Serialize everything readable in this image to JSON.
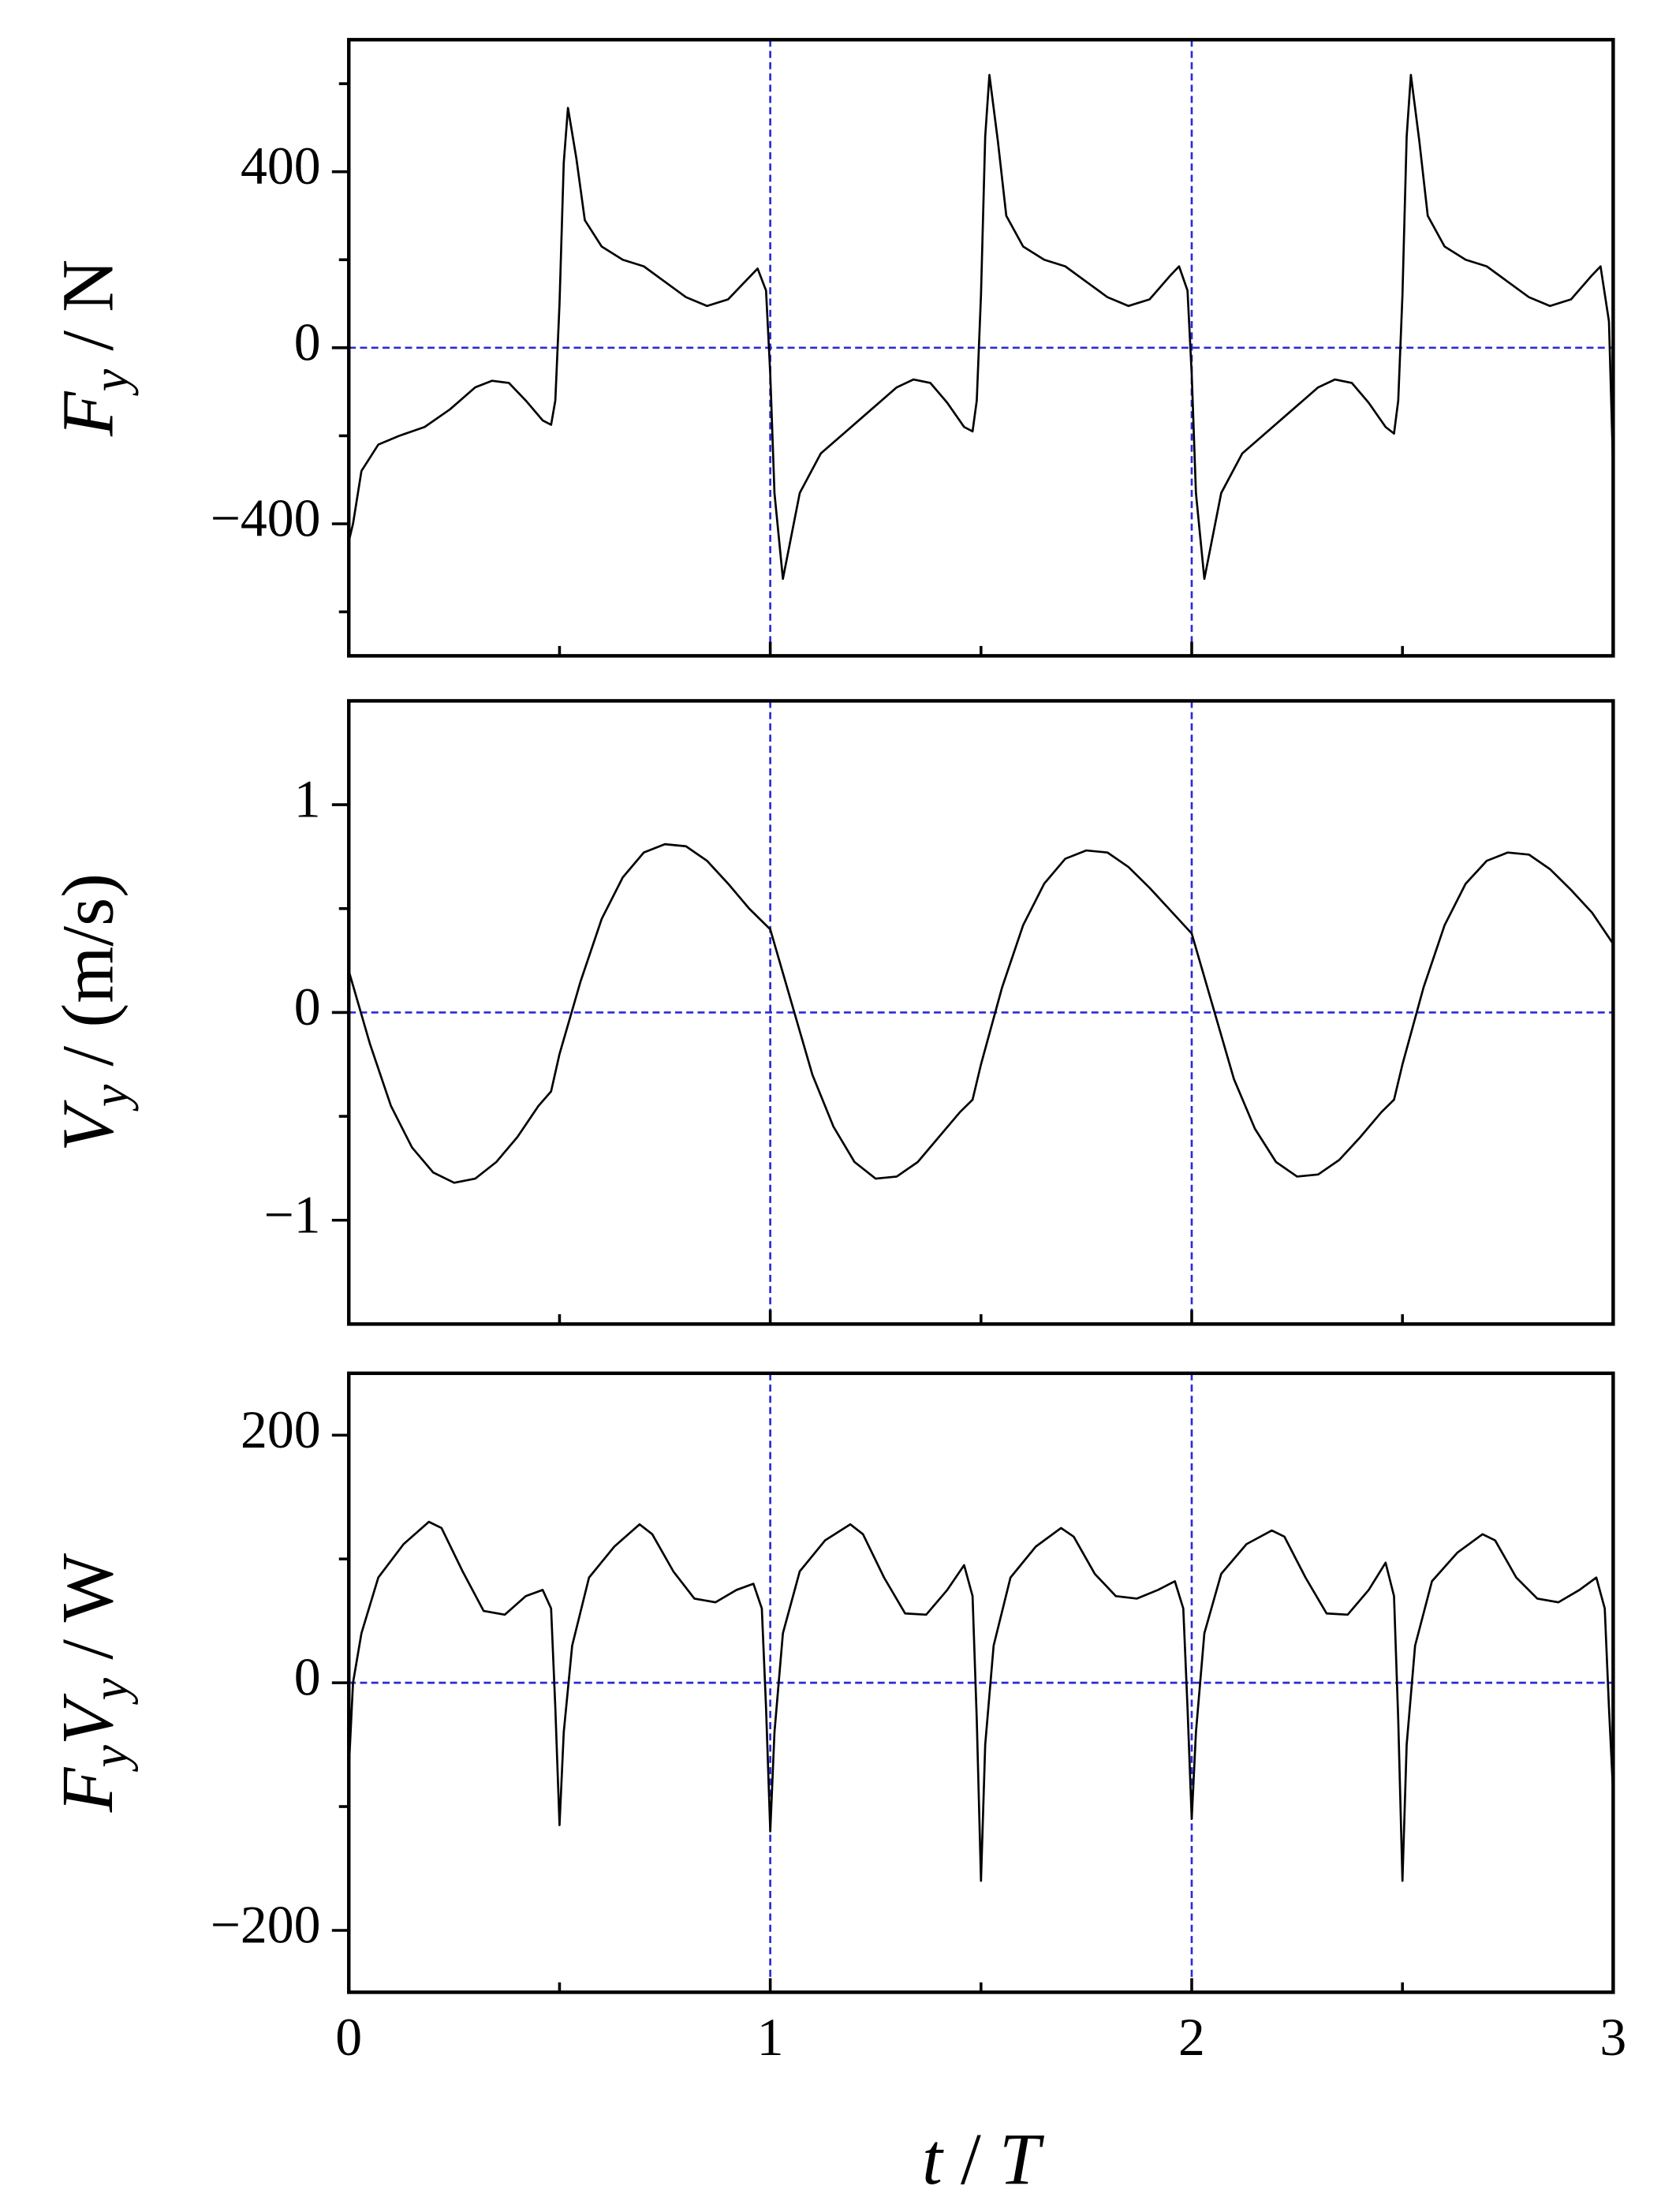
{
  "chart_data": [
    {
      "type": "line",
      "ylabel": [
        {
          "text": "F",
          "italic": true
        },
        {
          "text": "y",
          "italic": true,
          "sub": true
        },
        {
          "text": " / N"
        }
      ],
      "xlim": [
        0,
        3
      ],
      "xticks": [
        0,
        1,
        2,
        3
      ],
      "xticks_minor": [
        0.5,
        1.5,
        2.5
      ],
      "show_xtick_labels": false,
      "ylim": [
        -700,
        700
      ],
      "yticks": [
        {
          "value": -400,
          "label": "−400"
        },
        0,
        400
      ],
      "yticks_minor": [
        -600,
        -200,
        200,
        600
      ],
      "ref_x": [
        1,
        2
      ],
      "ref_y": [
        0
      ],
      "ref_color": "#2b2bd6",
      "series": [
        {
          "color": "#000000",
          "x": [
            0,
            0.01,
            0.03,
            0.07,
            0.12,
            0.18,
            0.24,
            0.3,
            0.34,
            0.38,
            0.42,
            0.46,
            0.48,
            0.49,
            0.5,
            0.51,
            0.52,
            0.54,
            0.56,
            0.6,
            0.65,
            0.7,
            0.75,
            0.8,
            0.85,
            0.9,
            0.95,
            0.97,
            0.99,
            1.0,
            1.01,
            1.03,
            1.07,
            1.12,
            1.18,
            1.24,
            1.3,
            1.34,
            1.38,
            1.42,
            1.46,
            1.48,
            1.49,
            1.5,
            1.51,
            1.52,
            1.54,
            1.56,
            1.6,
            1.65,
            1.7,
            1.75,
            1.8,
            1.85,
            1.9,
            1.95,
            1.97,
            1.99,
            2.0,
            2.01,
            2.03,
            2.07,
            2.12,
            2.18,
            2.24,
            2.3,
            2.34,
            2.38,
            2.42,
            2.46,
            2.48,
            2.49,
            2.5,
            2.51,
            2.52,
            2.54,
            2.56,
            2.6,
            2.65,
            2.7,
            2.75,
            2.8,
            2.85,
            2.9,
            2.95,
            2.97,
            2.99,
            3.0
          ],
          "values": [
            -440,
            -400,
            -280,
            -220,
            -200,
            -180,
            -140,
            -90,
            -75,
            -80,
            -120,
            -165,
            -175,
            -120,
            100,
            420,
            545,
            430,
            290,
            230,
            200,
            185,
            150,
            115,
            95,
            110,
            160,
            180,
            130,
            -60,
            -330,
            -525,
            -330,
            -240,
            -190,
            -140,
            -90,
            -72,
            -80,
            -125,
            -180,
            -190,
            -120,
            120,
            480,
            620,
            470,
            300,
            230,
            200,
            185,
            150,
            115,
            95,
            110,
            165,
            185,
            130,
            -60,
            -330,
            -525,
            -330,
            -240,
            -190,
            -140,
            -90,
            -72,
            -80,
            -125,
            -180,
            -195,
            -120,
            120,
            480,
            620,
            470,
            300,
            230,
            200,
            185,
            150,
            115,
            95,
            110,
            165,
            185,
            60,
            -280
          ]
        }
      ]
    },
    {
      "type": "line",
      "ylabel": [
        {
          "text": "V",
          "italic": true
        },
        {
          "text": "y",
          "italic": true,
          "sub": true
        },
        {
          "text": " / (m/s)"
        }
      ],
      "xlim": [
        0,
        3
      ],
      "xticks": [
        0,
        1,
        2,
        3
      ],
      "xticks_minor": [
        0.5,
        1.5,
        2.5
      ],
      "show_xtick_labels": false,
      "ylim": [
        -1.5,
        1.5
      ],
      "yticks": [
        {
          "value": -1,
          "label": "−1"
        },
        0,
        1
      ],
      "yticks_minor": [
        -0.5,
        0.5
      ],
      "ref_x": [
        1,
        2
      ],
      "ref_y": [
        0
      ],
      "ref_color": "#2b2bd6",
      "series": [
        {
          "color": "#000000",
          "x": [
            0,
            0.05,
            0.1,
            0.15,
            0.2,
            0.25,
            0.3,
            0.35,
            0.4,
            0.45,
            0.48,
            0.5,
            0.55,
            0.6,
            0.65,
            0.7,
            0.75,
            0.8,
            0.85,
            0.9,
            0.95,
            1.0,
            1.05,
            1.1,
            1.15,
            1.2,
            1.25,
            1.3,
            1.35,
            1.4,
            1.45,
            1.48,
            1.5,
            1.55,
            1.6,
            1.65,
            1.7,
            1.75,
            1.8,
            1.85,
            1.9,
            1.95,
            2.0,
            2.05,
            2.1,
            2.15,
            2.2,
            2.25,
            2.3,
            2.35,
            2.4,
            2.45,
            2.48,
            2.5,
            2.55,
            2.6,
            2.65,
            2.7,
            2.75,
            2.8,
            2.85,
            2.9,
            2.95,
            3.0
          ],
          "values": [
            0.2,
            -0.15,
            -0.45,
            -0.65,
            -0.77,
            -0.82,
            -0.8,
            -0.72,
            -0.6,
            -0.45,
            -0.38,
            -0.2,
            0.15,
            0.45,
            0.65,
            0.77,
            0.81,
            0.8,
            0.73,
            0.62,
            0.5,
            0.4,
            0.05,
            -0.3,
            -0.55,
            -0.72,
            -0.8,
            -0.79,
            -0.72,
            -0.6,
            -0.48,
            -0.42,
            -0.25,
            0.12,
            0.42,
            0.62,
            0.74,
            0.78,
            0.77,
            0.7,
            0.6,
            0.49,
            0.38,
            0.03,
            -0.32,
            -0.56,
            -0.72,
            -0.79,
            -0.78,
            -0.71,
            -0.6,
            -0.48,
            -0.42,
            -0.25,
            0.12,
            0.42,
            0.62,
            0.73,
            0.77,
            0.76,
            0.69,
            0.59,
            0.48,
            0.33
          ]
        }
      ]
    },
    {
      "type": "line",
      "ylabel": [
        {
          "text": "F",
          "italic": true
        },
        {
          "text": "y",
          "italic": true,
          "sub": true
        },
        {
          "text": "V",
          "italic": true
        },
        {
          "text": "y",
          "italic": true,
          "sub": true
        },
        {
          "text": " / W"
        }
      ],
      "xlabel": [
        {
          "text": "t",
          "italic": true
        },
        {
          "text": " / "
        },
        {
          "text": "T",
          "italic": true
        }
      ],
      "xlim": [
        0,
        3
      ],
      "xticks": [
        0,
        1,
        2,
        3
      ],
      "xticks_minor": [
        0.5,
        1.5,
        2.5
      ],
      "show_xtick_labels": true,
      "ylim": [
        -250,
        250
      ],
      "yticks": [
        {
          "value": -200,
          "label": "−200"
        },
        0,
        200
      ],
      "yticks_minor": [
        -100,
        100
      ],
      "ref_x": [
        1,
        2
      ],
      "ref_y": [
        0
      ],
      "ref_color": "#2b2bd6",
      "series": [
        {
          "color": "#000000",
          "x": [
            0,
            0.01,
            0.03,
            0.07,
            0.13,
            0.19,
            0.22,
            0.27,
            0.32,
            0.37,
            0.42,
            0.46,
            0.48,
            0.49,
            0.5,
            0.51,
            0.53,
            0.57,
            0.63,
            0.69,
            0.72,
            0.77,
            0.82,
            0.87,
            0.92,
            0.96,
            0.98,
            0.99,
            1.0,
            1.01,
            1.03,
            1.07,
            1.13,
            1.19,
            1.22,
            1.27,
            1.32,
            1.37,
            1.42,
            1.46,
            1.48,
            1.49,
            1.5,
            1.51,
            1.53,
            1.57,
            1.63,
            1.69,
            1.72,
            1.77,
            1.82,
            1.87,
            1.92,
            1.96,
            1.98,
            1.99,
            2.0,
            2.01,
            2.03,
            2.07,
            2.13,
            2.19,
            2.22,
            2.27,
            2.32,
            2.37,
            2.42,
            2.46,
            2.48,
            2.49,
            2.5,
            2.51,
            2.53,
            2.57,
            2.63,
            2.69,
            2.72,
            2.77,
            2.82,
            2.87,
            2.92,
            2.96,
            2.98,
            2.99,
            3.0
          ],
          "values": [
            -70,
            0,
            40,
            85,
            112,
            130,
            125,
            90,
            58,
            55,
            70,
            75,
            60,
            -20,
            -115,
            -40,
            30,
            85,
            110,
            128,
            120,
            90,
            68,
            65,
            75,
            80,
            60,
            -20,
            -120,
            -40,
            40,
            90,
            115,
            128,
            120,
            85,
            56,
            55,
            75,
            95,
            70,
            -30,
            -160,
            -50,
            30,
            85,
            110,
            125,
            118,
            88,
            70,
            68,
            75,
            82,
            60,
            -20,
            -110,
            -40,
            40,
            88,
            112,
            123,
            118,
            85,
            56,
            55,
            75,
            97,
            70,
            -30,
            -160,
            -50,
            30,
            82,
            105,
            120,
            115,
            85,
            68,
            65,
            75,
            85,
            60,
            -20,
            -90
          ]
        }
      ]
    }
  ]
}
